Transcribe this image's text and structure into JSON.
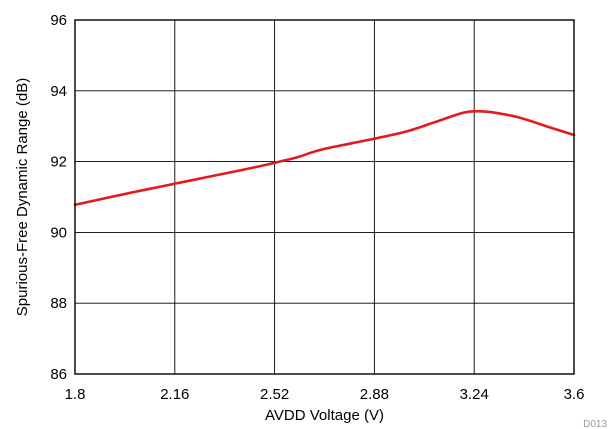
{
  "chart_data": {
    "type": "line",
    "title": "",
    "xlabel": "AVDD Voltage (V)",
    "ylabel": "Spurious-Free Dynamic Range (dB)",
    "xlim": [
      1.8,
      3.6
    ],
    "ylim": [
      86,
      96
    ],
    "xticks": [
      "1.8",
      "2.16",
      "2.52",
      "2.88",
      "3.24",
      "3.6"
    ],
    "yticks": [
      "86",
      "88",
      "90",
      "92",
      "94",
      "96"
    ],
    "grid": true,
    "legend": "none",
    "footnote": "D013",
    "line_color": "#e41a1c",
    "series": [
      {
        "x": [
          1.8,
          1.9,
          2.0,
          2.1,
          2.2,
          2.3,
          2.4,
          2.5,
          2.6,
          2.65,
          2.7,
          2.8,
          2.9,
          3.0,
          3.1,
          3.2,
          3.25,
          3.3,
          3.4,
          3.5,
          3.6
        ],
        "y": [
          90.78,
          90.95,
          91.12,
          91.28,
          91.44,
          91.6,
          91.76,
          91.93,
          92.12,
          92.25,
          92.36,
          92.52,
          92.68,
          92.86,
          93.12,
          93.38,
          93.42,
          93.4,
          93.25,
          93.0,
          92.75
        ]
      }
    ]
  }
}
